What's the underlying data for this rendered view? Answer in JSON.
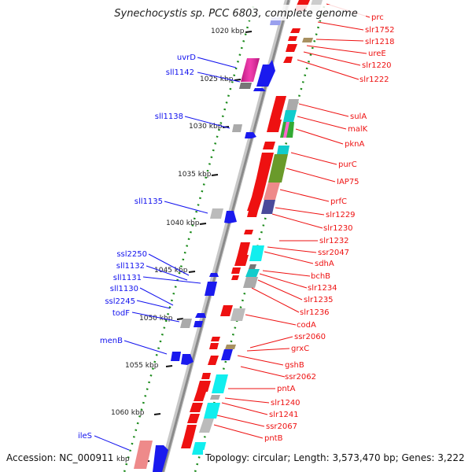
{
  "title": "Synechocystis sp. PCC 6803, complete genome",
  "footer": {
    "accession": "Accession: NC_000911",
    "topology": "Topology: circular; Length: 3,573,470 bp; Genes: 3,222"
  },
  "colors": {
    "forward": "#ee1111",
    "reverse": "#1111ee",
    "backbone": "#8a8a8a",
    "tick": "#1a8a1a",
    "mark": "#111111"
  },
  "kbp_marks": [
    "1020 kbp",
    "1025 kbp",
    "1030 kbp",
    "1035 kbp",
    "1040 kbp",
    "1045 kbp",
    "1050 kbp",
    "1055 kbp",
    "1060 kbp",
    "kbp"
  ],
  "left_genes": [
    "uvrD",
    "sll1142",
    "sll1138",
    "sll1135",
    "ssl2250",
    "sll1132",
    "sll1131",
    "sll1130",
    "ssl2245",
    "todF",
    "menB",
    "ileS"
  ],
  "right_genes": [
    "prc",
    "slr1752",
    "slr1218",
    "ureE",
    "slr1220",
    "slr1222",
    "sulA",
    "malK",
    "pknA",
    "purC",
    "IAP75",
    "prfC",
    "slr1229",
    "slr1230",
    "slr1232",
    "ssr2047",
    "sdhA",
    "bchB",
    "slr1234",
    "slr1235",
    "slr1236",
    "codA",
    "ssr2060",
    "grxC",
    "gshB",
    "ssr2062",
    "pntA",
    "slr1240",
    "slr1241",
    "ssr2067",
    "pntB"
  ]
}
